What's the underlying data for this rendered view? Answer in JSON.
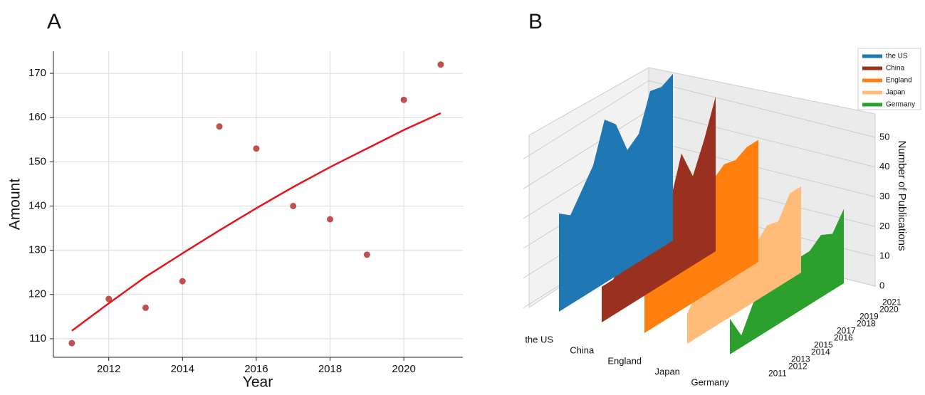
{
  "chart_data": [
    {
      "type": "scatter",
      "panel": "A",
      "xlabel": "Year",
      "ylabel": "Amount",
      "x": [
        2011,
        2012,
        2013,
        2014,
        2015,
        2016,
        2017,
        2018,
        2019,
        2020,
        2021
      ],
      "series": [
        {
          "type": "scatter",
          "color": "#c0504d",
          "values": [
            109,
            119,
            117,
            123,
            158,
            153,
            140,
            137,
            129,
            164,
            172
          ]
        },
        {
          "type": "line",
          "color": "#e8141a",
          "values": [
            111.8,
            118,
            124,
            129.3,
            134.5,
            139.5,
            144.3,
            148.8,
            153,
            157.2,
            161
          ]
        }
      ],
      "xlim": [
        2010.5,
        2021.6
      ],
      "xticks": [
        2012,
        2014,
        2016,
        2018,
        2020
      ],
      "ylim": [
        105.8,
        175
      ],
      "yticks": [
        110,
        120,
        130,
        140,
        150,
        160,
        170
      ],
      "grid": true
    },
    {
      "type": "polygon3d",
      "panel": "B",
      "zlabel": "Number of Publications",
      "categories": [
        "the US",
        "China",
        "England",
        "Japan",
        "Germany"
      ],
      "x": [
        2011,
        2012,
        2013,
        2014,
        2015,
        2016,
        2017,
        2018,
        2019,
        2020,
        2021
      ],
      "series": [
        {
          "name": "the US",
          "color": "#1f77b4",
          "values": [
            33,
            30,
            36,
            42,
            55,
            51,
            40,
            43,
            55,
            54,
            56
          ]
        },
        {
          "name": "China",
          "color": "#9a3120",
          "values": [
            12,
            12,
            17,
            20,
            22,
            24,
            26,
            40,
            30,
            40,
            52
          ]
        },
        {
          "name": "England",
          "color": "#ff7f0e",
          "values": [
            18,
            26,
            29,
            31,
            28,
            32,
            37,
            40,
            39,
            41,
            41
          ]
        },
        {
          "name": "Japan",
          "color": "#ffbb78",
          "values": [
            10,
            16,
            16,
            18,
            19,
            20,
            19,
            23,
            22,
            29,
            29
          ]
        },
        {
          "name": "Germany",
          "color": "#2ca02c",
          "values": [
            12,
            4,
            12,
            20,
            19,
            17,
            18,
            18,
            21,
            19,
            25
          ]
        }
      ],
      "zlim": [
        0,
        55
      ],
      "zticks": [
        0,
        10,
        20,
        30,
        40,
        50
      ],
      "legend": "upper right"
    }
  ]
}
